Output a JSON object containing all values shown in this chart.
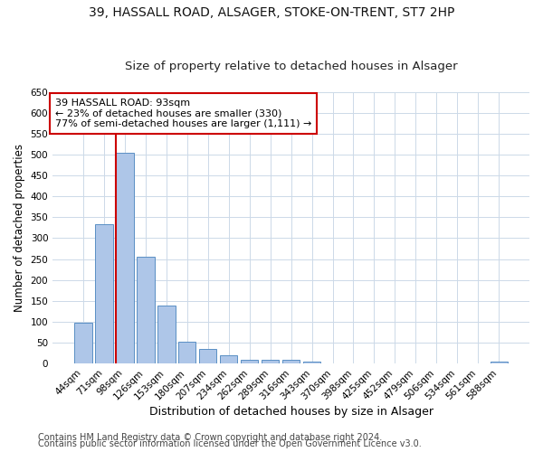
{
  "title1": "39, HASSALL ROAD, ALSAGER, STOKE-ON-TRENT, ST7 2HP",
  "title2": "Size of property relative to detached houses in Alsager",
  "xlabel": "Distribution of detached houses by size in Alsager",
  "ylabel": "Number of detached properties",
  "categories": [
    "44sqm",
    "71sqm",
    "98sqm",
    "126sqm",
    "153sqm",
    "180sqm",
    "207sqm",
    "234sqm",
    "262sqm",
    "289sqm",
    "316sqm",
    "343sqm",
    "370sqm",
    "398sqm",
    "425sqm",
    "452sqm",
    "479sqm",
    "506sqm",
    "534sqm",
    "561sqm",
    "588sqm"
  ],
  "values": [
    97,
    333,
    504,
    255,
    138,
    53,
    36,
    21,
    9,
    10,
    10,
    5,
    1,
    1,
    1,
    1,
    1,
    1,
    1,
    1,
    5
  ],
  "bar_color": "#aec6e8",
  "bar_edge_color": "#5a8fc4",
  "vline_x_idx": 2,
  "vline_color": "#cc0000",
  "annotation_line1": "39 HASSALL ROAD: 93sqm",
  "annotation_line2": "← 23% of detached houses are smaller (330)",
  "annotation_line3": "77% of semi-detached houses are larger (1,111) →",
  "annotation_box_color": "#cc0000",
  "ylim": [
    0,
    650
  ],
  "yticks": [
    0,
    50,
    100,
    150,
    200,
    250,
    300,
    350,
    400,
    450,
    500,
    550,
    600,
    650
  ],
  "footer1": "Contains HM Land Registry data © Crown copyright and database right 2024.",
  "footer2": "Contains public sector information licensed under the Open Government Licence v3.0.",
  "bg_color": "#ffffff",
  "grid_color": "#ccd9e8",
  "title1_fontsize": 10,
  "title2_fontsize": 9.5,
  "tick_fontsize": 7.5,
  "xlabel_fontsize": 9,
  "ylabel_fontsize": 8.5,
  "footer_fontsize": 7,
  "annot_fontsize": 8
}
